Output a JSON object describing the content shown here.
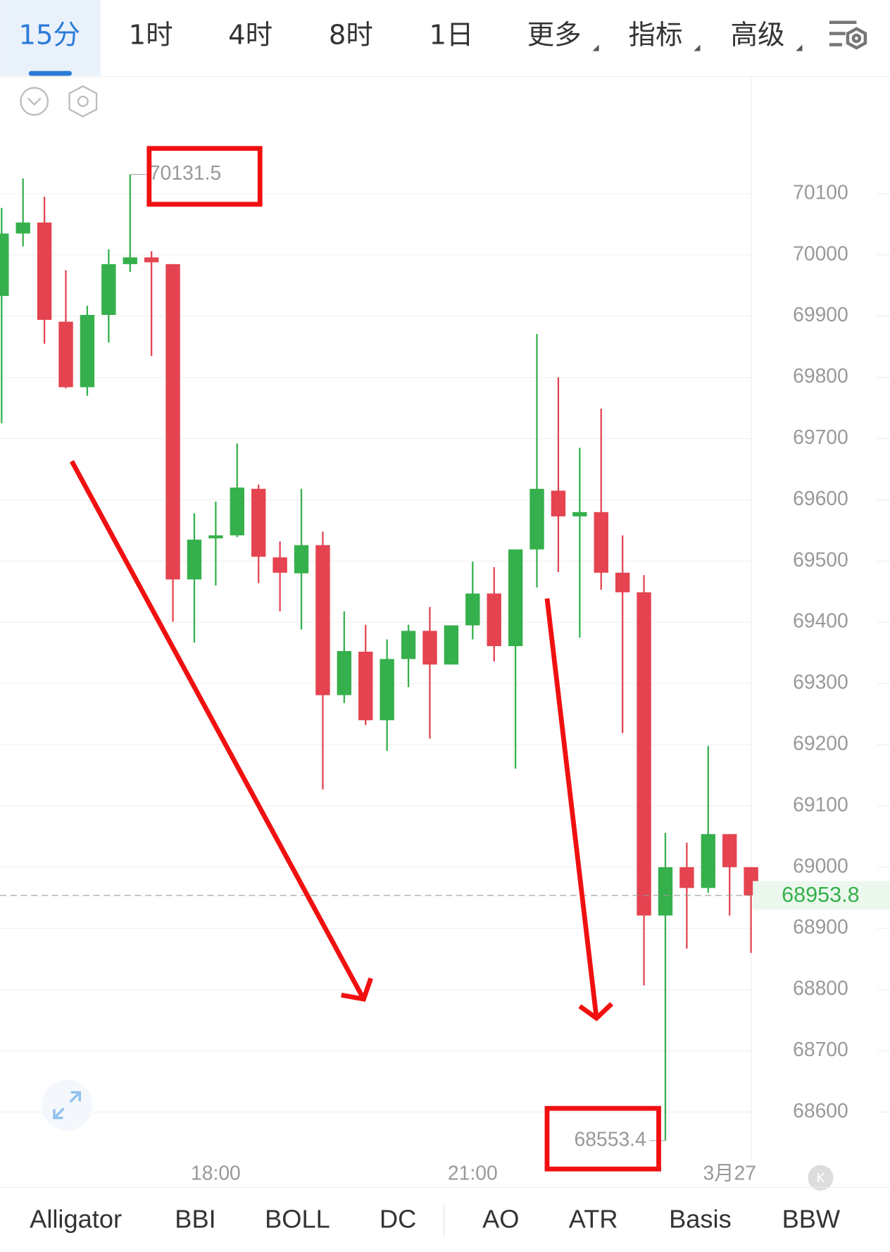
{
  "tabs": [
    "15分",
    "1时",
    "4时",
    "8时",
    "1日",
    "更多",
    "指标",
    "高级"
  ],
  "chart_data": {
    "type": "candlestick",
    "categories": [
      null,
      null,
      null,
      null,
      null,
      null,
      null,
      null,
      null,
      null,
      "18:00",
      null,
      null,
      null,
      null,
      null,
      null,
      null,
      null,
      null,
      null,
      null,
      "21:00",
      null,
      null,
      null,
      null,
      null,
      null,
      null,
      null,
      null,
      null,
      null,
      "3月27",
      null
    ],
    "open": [
      69933,
      70035,
      70053,
      69891,
      69784,
      69902,
      69985,
      69996,
      69985,
      69470,
      69537,
      69542,
      69618,
      69506,
      69480,
      69526,
      69281,
      69352,
      69240,
      69340,
      69386,
      69331,
      69395,
      69447,
      69361,
      69519,
      69615,
      69573,
      69580,
      69481,
      69449,
      68921,
      69000,
      68966,
      69054,
      69000
    ],
    "high": [
      70077,
      70125,
      70095,
      69975,
      69917,
      70009,
      70131.5,
      70006,
      69985,
      69578,
      69597,
      69692,
      69625,
      69532,
      69618,
      69548,
      69418,
      69396,
      69372,
      69396,
      69425,
      69395,
      69499,
      69490,
      69519,
      69871,
      69800,
      69685,
      69749,
      69542,
      69477,
      69056,
      69040,
      69198,
      69054,
      69000
    ],
    "low": [
      69725,
      70014,
      69855,
      69782,
      69770,
      69857,
      69972,
      69835,
      69401,
      69367,
      69460,
      69539,
      69464,
      69418,
      69388,
      69127,
      69268,
      69232,
      69190,
      69294,
      69210,
      69331,
      69372,
      69336,
      69161,
      69457,
      69482,
      69375,
      69453,
      69219,
      68807,
      68553.4,
      68867,
      68958,
      68921,
      68860
    ],
    "close": [
      70035,
      70053,
      69894,
      69784,
      69902,
      69985,
      69996,
      69988,
      69470,
      69535,
      69542,
      69620,
      69507,
      69481,
      69526,
      69281,
      69353,
      69240,
      69340,
      69386,
      69331,
      69395,
      69447,
      69361,
      69519,
      69618,
      69573,
      69580,
      69481,
      69449,
      68921,
      69000,
      68966,
      69054,
      69000,
      68953.8
    ],
    "up_color": "#35b04c",
    "down_color": "#e4434f",
    "ylim": [
      68520,
      70290
    ],
    "yticks": [
      68600,
      68700,
      68800,
      68900,
      69000,
      69100,
      69200,
      69300,
      69400,
      69500,
      69600,
      69700,
      69800,
      69900,
      70000,
      70100
    ],
    "grid": true
  },
  "indicators": [
    "Alligator",
    "BBI",
    "BOLL",
    "DC",
    "AO",
    "ATR",
    "Basis",
    "BBW"
  ]
}
